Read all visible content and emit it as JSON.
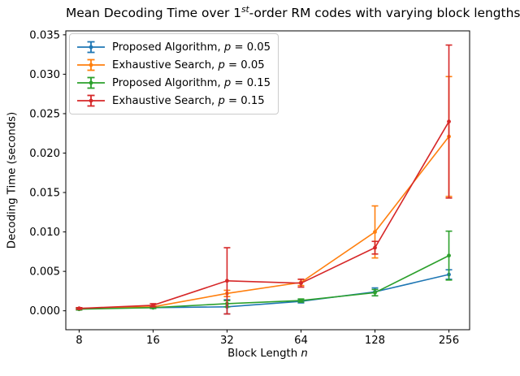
{
  "title": {
    "prefix": "Mean Decoding Time over 1",
    "superscript": "st",
    "suffix": "-order RM codes with varying block lengths"
  },
  "axes": {
    "xlabel_prefix": "Block Length ",
    "xlabel_var": "n",
    "ylabel": "Decoding Time (seconds)",
    "xtick_labels": [
      "8",
      "16",
      "32",
      "64",
      "128",
      "256"
    ],
    "ytick_labels": [
      "0.000",
      "0.005",
      "0.010",
      "0.015",
      "0.020",
      "0.025",
      "0.030",
      "0.035"
    ],
    "ytick_values": [
      0.0,
      0.005,
      0.01,
      0.015,
      0.02,
      0.025,
      0.03,
      0.035
    ]
  },
  "chart_data": {
    "type": "line",
    "title": "Mean Decoding Time over 1st-order RM codes with varying block lengths",
    "xlabel": "Block Length n",
    "ylabel": "Decoding Time (seconds)",
    "x": [
      8,
      16,
      32,
      64,
      128,
      256
    ],
    "x_scale": "log2-categorical",
    "ylim": [
      -0.0024,
      0.0355
    ],
    "grid": false,
    "error_bars": true,
    "legend_position": "upper left",
    "series": [
      {
        "name": "Proposed Algorithm, p = 0.05",
        "label_parts": {
          "before": "Proposed Algorithm, ",
          "var": "p",
          "after": " = 0.05"
        },
        "color": "#1f77b4",
        "values": [
          0.0003,
          0.0004,
          0.0005,
          0.0012,
          0.0024,
          0.0046
        ],
        "yerr": [
          0.0001,
          0.0001,
          0.0009,
          0.0002,
          0.0005,
          0.0006
        ]
      },
      {
        "name": "Exhaustive Search, p = 0.05",
        "label_parts": {
          "before": "Exhaustive Search, ",
          "var": "p",
          "after": " = 0.05"
        },
        "color": "#ff7f0e",
        "values": [
          0.0003,
          0.0005,
          0.0022,
          0.0036,
          0.01,
          0.0221
        ],
        "yerr": [
          0.0001,
          0.0001,
          0.0004,
          0.0004,
          0.0033,
          0.0076
        ]
      },
      {
        "name": "Proposed Algorithm, p = 0.15",
        "label_parts": {
          "before": "Proposed Algorithm, ",
          "var": "p",
          "after": " = 0.15"
        },
        "color": "#2ca02c",
        "values": [
          0.0002,
          0.0004,
          0.0009,
          0.0013,
          0.0023,
          0.007
        ],
        "yerr": [
          0.0001,
          0.0001,
          0.0004,
          0.0002,
          0.0004,
          0.0031
        ]
      },
      {
        "name": "Exhaustive Search, p = 0.15",
        "label_parts": {
          "before": "Exhaustive Search, ",
          "var": "p",
          "after": " = 0.15"
        },
        "color": "#d62728",
        "values": [
          0.0003,
          0.0007,
          0.0038,
          0.0035,
          0.008,
          0.024
        ],
        "yerr": [
          0.0001,
          0.0002,
          0.0042,
          0.0005,
          0.0008,
          0.0097
        ]
      }
    ]
  }
}
